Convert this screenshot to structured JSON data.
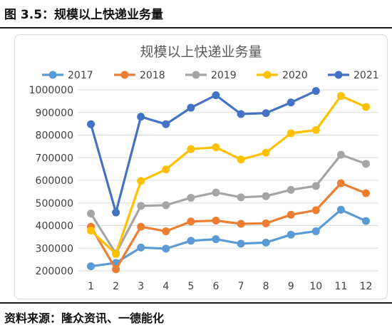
{
  "header": {
    "caption": "图 3.5：规模以上快递业务量"
  },
  "footer": {
    "source": "资料来源：隆众资讯、一德能化"
  },
  "chart_data": {
    "type": "line",
    "title": "规模以上快递业务量",
    "xlabel": "",
    "ylabel": "",
    "categories": [
      "1",
      "2",
      "3",
      "4",
      "5",
      "6",
      "7",
      "8",
      "9",
      "10",
      "11",
      "12"
    ],
    "ylim": [
      200000,
      1000000
    ],
    "yticks": [
      200000,
      300000,
      400000,
      500000,
      600000,
      700000,
      800000,
      900000,
      1000000
    ],
    "grid": "horizontal",
    "legend": "top",
    "series": [
      {
        "name": "2017",
        "color": "#5b9bd5",
        "values": [
          220000,
          235000,
          303000,
          298000,
          333000,
          340000,
          320000,
          325000,
          360000,
          375000,
          470000,
          420000
        ]
      },
      {
        "name": "2018",
        "color": "#ed7d31",
        "values": [
          395000,
          207000,
          395000,
          375000,
          418000,
          422000,
          408000,
          410000,
          448000,
          468000,
          587000,
          543000
        ]
      },
      {
        "name": "2019",
        "color": "#a5a5a5",
        "values": [
          453000,
          277000,
          487000,
          490000,
          523000,
          546000,
          525000,
          530000,
          558000,
          575000,
          713000,
          673000
        ]
      },
      {
        "name": "2020",
        "color": "#ffc000",
        "values": [
          378000,
          275000,
          597000,
          648000,
          738000,
          746000,
          692000,
          722000,
          808000,
          822000,
          973000,
          924000
        ]
      },
      {
        "name": "2021",
        "color": "#4472c4",
        "values": [
          848000,
          458000,
          881000,
          848000,
          921000,
          976000,
          893000,
          897000,
          944000,
          995000,
          null,
          null
        ]
      }
    ]
  }
}
